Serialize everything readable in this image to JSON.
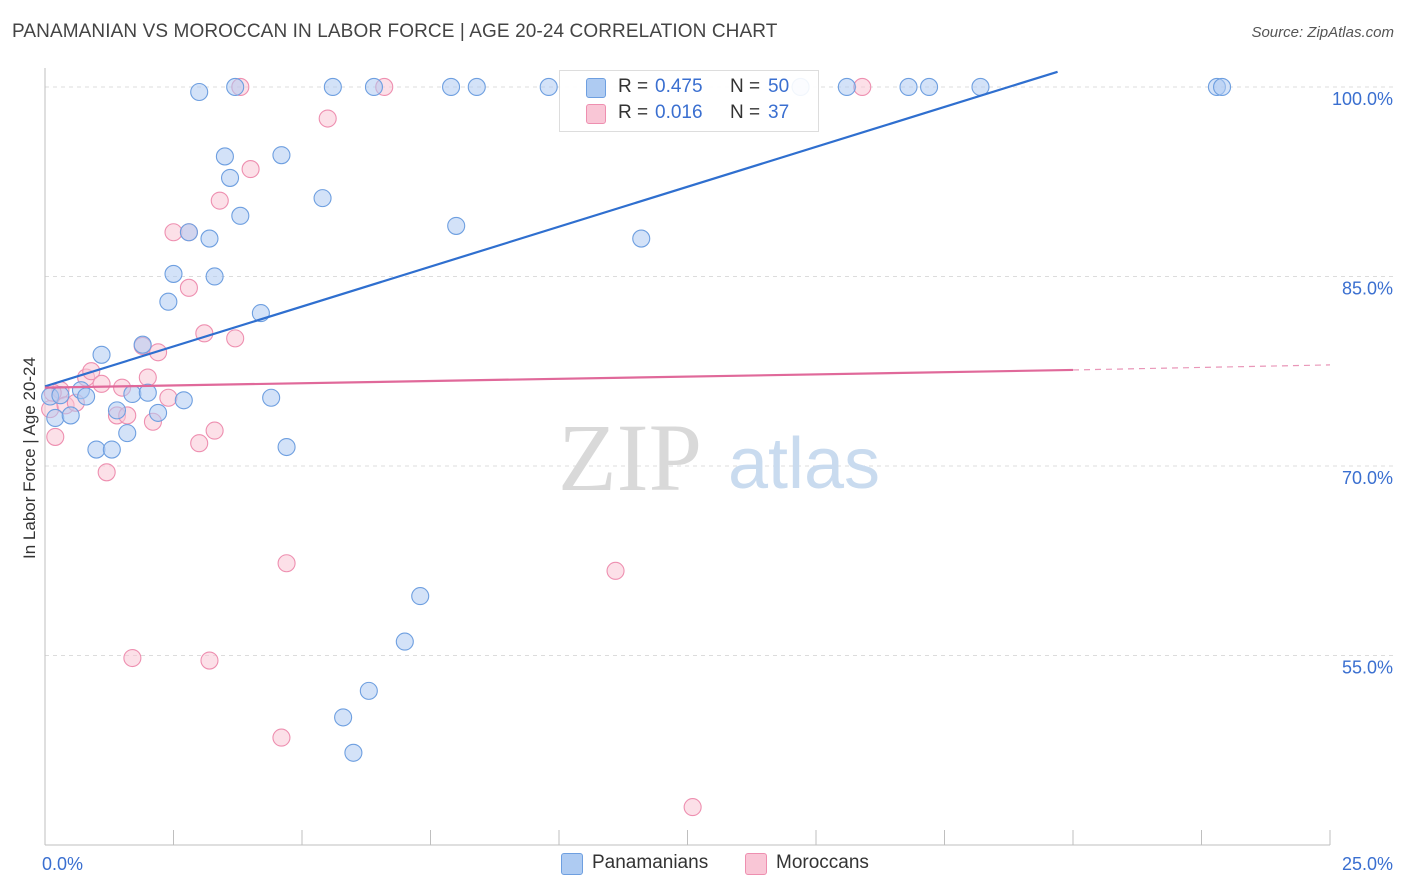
{
  "title": "PANAMANIAN VS MOROCCAN IN LABOR FORCE | AGE 20-24 CORRELATION CHART",
  "source": "Source: ZipAtlas.com",
  "watermark": {
    "zip": "ZIP",
    "atlas": "atlas"
  },
  "legend": {
    "rows": [
      {
        "r_label": "R =",
        "r_value": "0.475",
        "n_label": "N =",
        "n_value": "50"
      },
      {
        "r_label": "R =",
        "r_value": "0.016",
        "n_label": "N =",
        "n_value": "37"
      }
    ]
  },
  "bottom_legend": [
    "Panamanians",
    "Moroccans"
  ],
  "colors": {
    "blue_fill": "#aecbf2",
    "blue_stroke": "#6e9fe0",
    "blue_line": "#2f6fcf",
    "pink_fill": "#f9c6d6",
    "pink_stroke": "#ee8fb0",
    "pink_line": "#e0699a",
    "tick_label": "#3a6fd0",
    "grid": "#dcdcdc"
  },
  "chart_data": {
    "type": "scatter",
    "xlabel": "",
    "ylabel": "In Labor Force | Age 20-24",
    "xlim": [
      0,
      25
    ],
    "ylim": [
      40,
      101.5
    ],
    "x_tick_labels": [
      {
        "value": 0,
        "label": "0.0%"
      },
      {
        "value": 25,
        "label": "25.0%"
      }
    ],
    "y_tick_labels": [
      {
        "value": 55,
        "label": "55.0%"
      },
      {
        "value": 70,
        "label": "70.0%"
      },
      {
        "value": 85,
        "label": "85.0%"
      },
      {
        "value": 100,
        "label": "100.0%"
      }
    ],
    "grid": true,
    "series": [
      {
        "name": "Panamanians",
        "r": 0.475,
        "n": 50,
        "trend": {
          "x": [
            0,
            19.7
          ],
          "y": [
            76.3,
            101.2
          ]
        },
        "points": [
          [
            0.1,
            75.5
          ],
          [
            0.2,
            73.8
          ],
          [
            0.3,
            75.6
          ],
          [
            0.5,
            74.0
          ],
          [
            0.7,
            76.0
          ],
          [
            0.8,
            75.5
          ],
          [
            1.0,
            71.3
          ],
          [
            1.1,
            78.8
          ],
          [
            1.3,
            71.3
          ],
          [
            1.4,
            74.4
          ],
          [
            1.6,
            72.6
          ],
          [
            1.7,
            75.7
          ],
          [
            1.9,
            79.6
          ],
          [
            2.0,
            75.8
          ],
          [
            2.2,
            74.2
          ],
          [
            2.4,
            83.0
          ],
          [
            2.5,
            85.2
          ],
          [
            2.7,
            75.2
          ],
          [
            2.8,
            88.5
          ],
          [
            3.0,
            99.6
          ],
          [
            3.2,
            88.0
          ],
          [
            3.3,
            85.0
          ],
          [
            3.5,
            94.5
          ],
          [
            3.6,
            92.8
          ],
          [
            3.7,
            100.0
          ],
          [
            3.8,
            89.8
          ],
          [
            4.2,
            82.1
          ],
          [
            4.4,
            75.4
          ],
          [
            4.6,
            94.6
          ],
          [
            4.7,
            71.5
          ],
          [
            5.4,
            91.2
          ],
          [
            5.6,
            100.0
          ],
          [
            5.8,
            50.1
          ],
          [
            6.3,
            52.2
          ],
          [
            6.4,
            100.0
          ],
          [
            7.0,
            56.1
          ],
          [
            7.3,
            59.7
          ],
          [
            7.9,
            100.0
          ],
          [
            8.0,
            89.0
          ],
          [
            8.4,
            100.0
          ],
          [
            9.8,
            100.0
          ],
          [
            11.6,
            88.0
          ],
          [
            14.7,
            100.0
          ],
          [
            15.6,
            100.0
          ],
          [
            16.8,
            100.0
          ],
          [
            17.2,
            100.0
          ],
          [
            18.2,
            100.0
          ],
          [
            22.8,
            100.0
          ],
          [
            22.9,
            100.0
          ],
          [
            6.0,
            47.3
          ]
        ]
      },
      {
        "name": "Moroccans",
        "r": 0.016,
        "n": 37,
        "trend": {
          "x": [
            0,
            20.0
          ],
          "y": [
            76.2,
            77.6
          ]
        },
        "trend_dashed": {
          "x": [
            20.0,
            25.0
          ],
          "y": [
            77.6,
            78.0
          ]
        },
        "points": [
          [
            0.1,
            74.5
          ],
          [
            0.2,
            72.3
          ],
          [
            0.3,
            76.0
          ],
          [
            0.4,
            74.8
          ],
          [
            0.6,
            75.0
          ],
          [
            0.8,
            77.0
          ],
          [
            0.9,
            77.5
          ],
          [
            1.1,
            76.5
          ],
          [
            1.2,
            69.5
          ],
          [
            1.4,
            74.0
          ],
          [
            1.5,
            76.2
          ],
          [
            1.6,
            74.0
          ],
          [
            1.7,
            54.8
          ],
          [
            1.9,
            79.5
          ],
          [
            2.0,
            77.0
          ],
          [
            2.1,
            73.5
          ],
          [
            2.2,
            79.0
          ],
          [
            2.4,
            75.4
          ],
          [
            2.5,
            88.5
          ],
          [
            2.8,
            84.1
          ],
          [
            2.8,
            88.5
          ],
          [
            3.0,
            71.8
          ],
          [
            3.1,
            80.5
          ],
          [
            3.2,
            54.6
          ],
          [
            3.3,
            72.8
          ],
          [
            3.4,
            91.0
          ],
          [
            3.7,
            80.1
          ],
          [
            3.8,
            100.0
          ],
          [
            4.0,
            93.5
          ],
          [
            4.6,
            48.5
          ],
          [
            4.7,
            62.3
          ],
          [
            5.5,
            97.5
          ],
          [
            6.6,
            100.0
          ],
          [
            11.1,
            61.7
          ],
          [
            12.6,
            43.0
          ],
          [
            15.9,
            100.0
          ],
          [
            0.15,
            75.8
          ]
        ]
      }
    ]
  }
}
